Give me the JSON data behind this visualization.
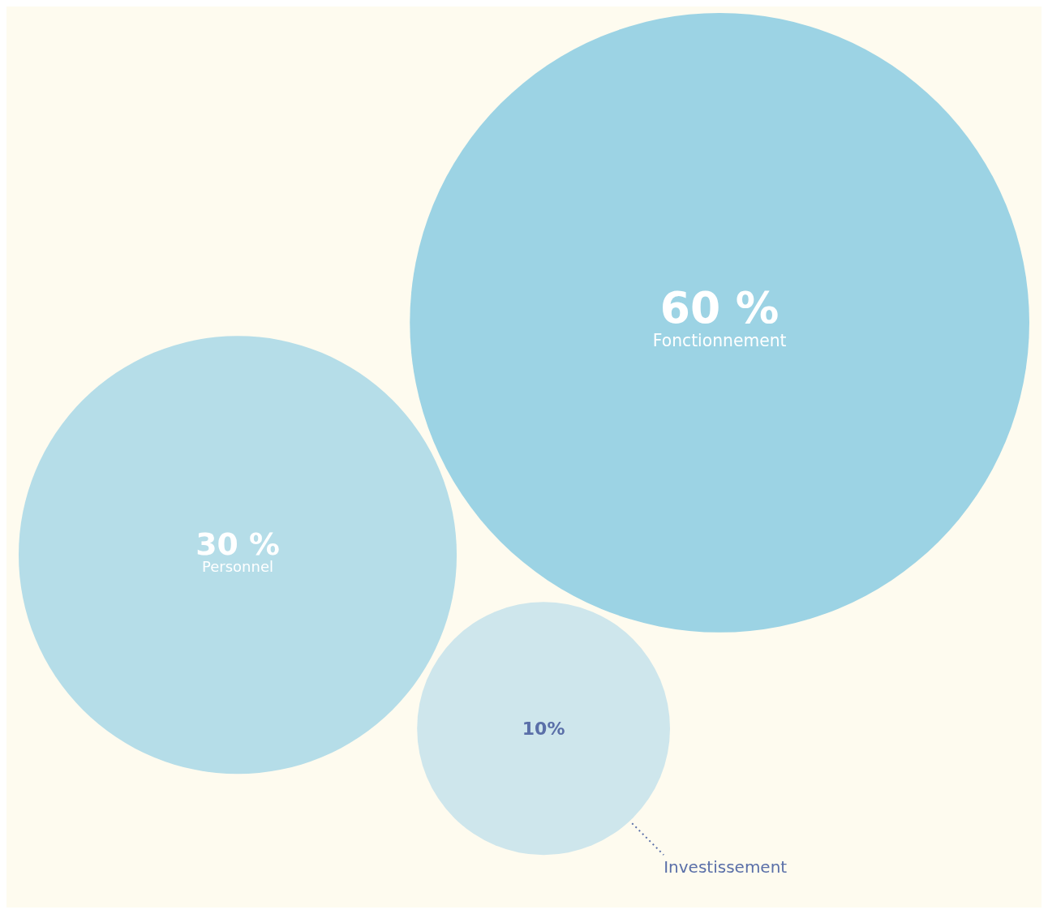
{
  "chart_data": {
    "type": "other",
    "categories": [
      "Fonctionnement",
      "Personnel",
      "Investissement"
    ],
    "values": [
      60,
      30,
      10
    ],
    "value_labels": [
      "60 %",
      "30 %",
      "10%"
    ],
    "colors": [
      "#9cd3e4",
      "#b5dde8",
      "#cee6ec"
    ]
  }
}
